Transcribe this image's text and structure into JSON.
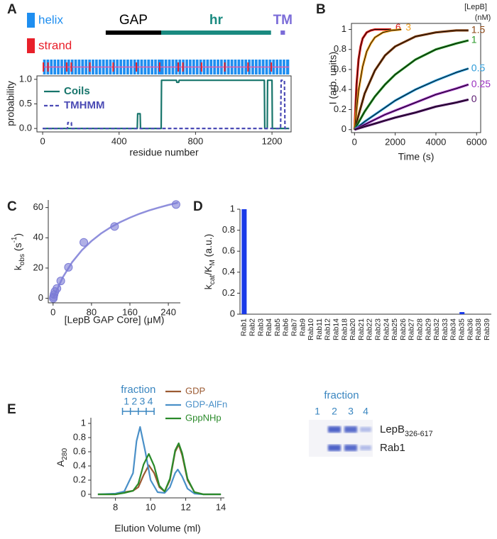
{
  "chart_data": [
    {
      "panel": "A",
      "type": "line",
      "x_label": "residue number",
      "y_label": "probability",
      "xlim": [
        -30,
        1300
      ],
      "xticks": [
        0,
        400,
        800,
        1200
      ],
      "ylim": [
        -0.07,
        1.07
      ],
      "yticks": [
        {
          "value": 0,
          "label": "0.0"
        },
        {
          "value": 0.5,
          "label": "0.5"
        },
        {
          "value": 1,
          "label": "1.0"
        }
      ],
      "legend": "upper left",
      "series": [
        {
          "name": "Coils",
          "color": "#17756b",
          "line_style": "solid",
          "x": [
            0,
            495,
            497,
            510,
            512,
            620,
            622,
            700,
            702,
            712,
            714,
            1160,
            1162,
            1175,
            1177,
            1200,
            1202,
            1290
          ],
          "values": [
            0,
            0,
            0.3,
            0.3,
            0,
            0,
            0.98,
            0.98,
            0.94,
            0.94,
            0.98,
            0.98,
            0,
            0,
            0.98,
            0.98,
            0,
            0
          ]
        },
        {
          "name": "TMHMM",
          "color": "#4b4bb5",
          "line_style": "dashed",
          "x": [
            0,
            130,
            132,
            150,
            152,
            1245,
            1248,
            1265,
            1268,
            1290
          ],
          "values": [
            0,
            0,
            0.12,
            0.12,
            0,
            0,
            0.98,
            0.98,
            0,
            0
          ]
        }
      ]
    },
    {
      "panel": "B",
      "type": "line",
      "x_label": "Time (s)",
      "y_label": "I (arb. units)",
      "legend_title": [
        "[LepB]",
        "(nM)"
      ],
      "legend": "line end",
      "fit_color": "#000000",
      "xlim": [
        -150,
        6200
      ],
      "xticks": [
        0,
        2000,
        4000,
        6000
      ],
      "ylim": [
        -0.03,
        1.06
      ],
      "yticks": [
        0,
        0.2,
        0.4,
        0.6,
        0.8,
        1
      ],
      "series": [
        {
          "name": "6",
          "color": "#e0201b",
          "x": [
            0,
            100,
            200,
            300,
            400,
            600,
            800,
            1000,
            1400,
            1800
          ],
          "values": [
            0,
            0.45,
            0.7,
            0.83,
            0.91,
            0.97,
            0.99,
            1,
            1,
            1
          ]
        },
        {
          "name": "3",
          "color": "#f0a020",
          "x": [
            0,
            200,
            400,
            600,
            800,
            1000,
            1400,
            1800,
            2300
          ],
          "values": [
            0,
            0.39,
            0.63,
            0.78,
            0.86,
            0.92,
            0.97,
            0.99,
            1
          ]
        },
        {
          "name": "1.5",
          "color": "#8b4513",
          "x": [
            0,
            500,
            1000,
            1500,
            2000,
            3000,
            4000,
            5000,
            5600
          ],
          "values": [
            0,
            0.36,
            0.59,
            0.74,
            0.83,
            0.93,
            0.97,
            0.99,
            0.99
          ]
        },
        {
          "name": "1",
          "color": "#2a9a2a",
          "x": [
            0,
            500,
            1000,
            1500,
            2000,
            3000,
            4000,
            5000,
            5600
          ],
          "values": [
            0,
            0.18,
            0.33,
            0.45,
            0.55,
            0.7,
            0.8,
            0.86,
            0.89
          ]
        },
        {
          "name": "0.5",
          "color": "#2a9ad8",
          "x": [
            0,
            500,
            1000,
            1500,
            2000,
            3000,
            4000,
            5000,
            5600
          ],
          "values": [
            0,
            0.08,
            0.15,
            0.22,
            0.29,
            0.4,
            0.49,
            0.57,
            0.61
          ]
        },
        {
          "name": "0.25",
          "color": "#9a30c0",
          "x": [
            0,
            500,
            1000,
            1500,
            2000,
            3000,
            4000,
            5000,
            5600
          ],
          "values": [
            0,
            0.05,
            0.1,
            0.15,
            0.19,
            0.27,
            0.35,
            0.41,
            0.45
          ]
        },
        {
          "name": "0",
          "color": "#5a1a70",
          "x": [
            0,
            500,
            1000,
            1500,
            2000,
            3000,
            4000,
            5000,
            5600
          ],
          "values": [
            0,
            0.03,
            0.06,
            0.09,
            0.12,
            0.17,
            0.23,
            0.27,
            0.3
          ]
        }
      ]
    },
    {
      "panel": "C",
      "type": "scatter",
      "color": "#7b7bd6",
      "x_label": "[LepB GAP Core] (μM)",
      "y_label": [
        {
          "text": "k"
        },
        {
          "text": "obs",
          "style": "sub"
        },
        {
          "text": " (s"
        },
        {
          "text": "-1",
          "style": "sup"
        },
        {
          "text": ")"
        }
      ],
      "xlim": [
        -10,
        265
      ],
      "xticks": [
        0,
        80,
        160,
        240
      ],
      "ylim": [
        -3,
        65
      ],
      "yticks": [
        0,
        20,
        40,
        60
      ],
      "x": [
        0.5,
        1,
        2,
        4,
        8,
        16,
        32,
        64,
        128,
        256
      ],
      "values": [
        0,
        1,
        2.5,
        4.5,
        6.5,
        11.5,
        20.5,
        37,
        47.5,
        62
      ],
      "fit": {
        "x": [
          0,
          20,
          40,
          60,
          80,
          100,
          120,
          140,
          160,
          180,
          200,
          220,
          240,
          260
        ],
        "values": [
          0,
          13.8,
          24,
          31.8,
          37.9,
          42.9,
          47,
          50.4,
          53.3,
          55.9,
          58.1,
          60,
          61.7,
          63.2
        ]
      }
    },
    {
      "panel": "D",
      "type": "bar",
      "color": "#1a3ae8",
      "y_label": [
        {
          "text": "k"
        },
        {
          "text": "cat",
          "style": "sub"
        },
        {
          "text": "/K"
        },
        {
          "text": "M",
          "style": "sub"
        },
        {
          "text": " (a.u.)"
        }
      ],
      "ylim": [
        0,
        1
      ],
      "yticks": [
        0,
        0.2,
        0.4,
        0.6,
        0.8,
        1
      ],
      "categories": [
        "Rab1",
        "Rab2",
        "Rab3",
        "Rab4",
        "Rab5",
        "Rab6",
        "Rab7",
        "Rab9",
        "Rab10",
        "Rab11",
        "Rab12",
        "Rab14",
        "Rab18",
        "Rab20",
        "Rab21",
        "Rab22",
        "Rab23",
        "Rab24",
        "Rab25",
        "Rab26",
        "Rab27",
        "Rab28",
        "Rab29",
        "Rab32",
        "Rab33",
        "Rab34",
        "Rab35",
        "Rab36",
        "Rab38",
        "Rab39"
      ],
      "values": [
        1,
        0,
        0,
        0,
        0,
        0,
        0,
        0,
        0,
        0,
        0,
        0,
        0,
        0,
        0,
        0,
        0,
        0,
        0,
        0,
        0,
        0,
        0,
        0,
        0,
        0,
        0.02,
        0,
        0,
        0
      ]
    },
    {
      "panel": "E",
      "type": "line",
      "x_label": "Elution Volume (ml)",
      "y_label": [
        {
          "text": "A"
        },
        {
          "text": "280",
          "style": "sub"
        }
      ],
      "legend": "upper right",
      "xlim": [
        6.6,
        14.2
      ],
      "xticks": [
        8,
        10,
        12,
        14
      ],
      "ylim": [
        -0.05,
        1.08
      ],
      "yticks": [
        0,
        0.2,
        0.4,
        0.6,
        0.8,
        1
      ],
      "fraction_label": "fraction",
      "fractions": [
        "1",
        "2",
        "3",
        "4"
      ],
      "fraction_edges": [
        8.4,
        8.85,
        9.3,
        9.75,
        10.2
      ],
      "fraction_color": "#3a86c0",
      "series": [
        {
          "name": "GDP",
          "color": "#9b5a32",
          "x": [
            7,
            8,
            8.5,
            9,
            9.3,
            9.6,
            9.9,
            10.2,
            10.5,
            10.8,
            11.1,
            11.4,
            11.6,
            11.8,
            12.1,
            12.5,
            13,
            14
          ],
          "values": [
            0,
            0,
            0.03,
            0.05,
            0.1,
            0.27,
            0.41,
            0.3,
            0.1,
            0.04,
            0.2,
            0.6,
            0.7,
            0.55,
            0.2,
            0.03,
            0,
            0
          ]
        },
        {
          "name": "GDP-AlFn",
          "color": "#4a90c8",
          "x": [
            7,
            8,
            8.5,
            9,
            9.2,
            9.4,
            9.7,
            10,
            10.4,
            10.8,
            11.1,
            11.4,
            11.55,
            11.8,
            12.1,
            12.5,
            13,
            14
          ],
          "values": [
            0,
            0.01,
            0.04,
            0.3,
            0.75,
            0.95,
            0.6,
            0.2,
            0.03,
            0.02,
            0.1,
            0.3,
            0.35,
            0.25,
            0.08,
            0.01,
            0,
            0
          ]
        },
        {
          "name": "GppNHp",
          "color": "#2a8a2a",
          "x": [
            7,
            8,
            8.5,
            9,
            9.3,
            9.6,
            9.9,
            10.2,
            10.5,
            10.8,
            11.1,
            11.4,
            11.6,
            11.8,
            12.1,
            12.5,
            13,
            14
          ],
          "values": [
            0,
            0,
            0.02,
            0.05,
            0.15,
            0.42,
            0.57,
            0.4,
            0.12,
            0.04,
            0.22,
            0.62,
            0.72,
            0.58,
            0.22,
            0.03,
            0,
            0
          ]
        }
      ]
    }
  ],
  "domain_map": {
    "length": 1290,
    "legend": [
      {
        "name": "helix",
        "color": "#1e8ef0"
      },
      {
        "name": "strand",
        "color": "#e8202a"
      }
    ],
    "domains": [
      {
        "name": "GAP",
        "start": 330,
        "end": 620,
        "color": "#000000"
      },
      {
        "name": "hr",
        "start": 620,
        "end": 1195,
        "color": "#1a8a80"
      },
      {
        "name": "TM",
        "start": 1245,
        "end": 1268,
        "color": "#7b6cd8"
      }
    ]
  },
  "gel": {
    "title": "fraction",
    "lanes": [
      "1",
      "2",
      "3",
      "4"
    ],
    "bands": [
      [
        {
          "text": "LepB"
        },
        {
          "text": "326-617",
          "style": "sub"
        }
      ],
      [
        {
          "text": "Rab1"
        }
      ]
    ]
  }
}
